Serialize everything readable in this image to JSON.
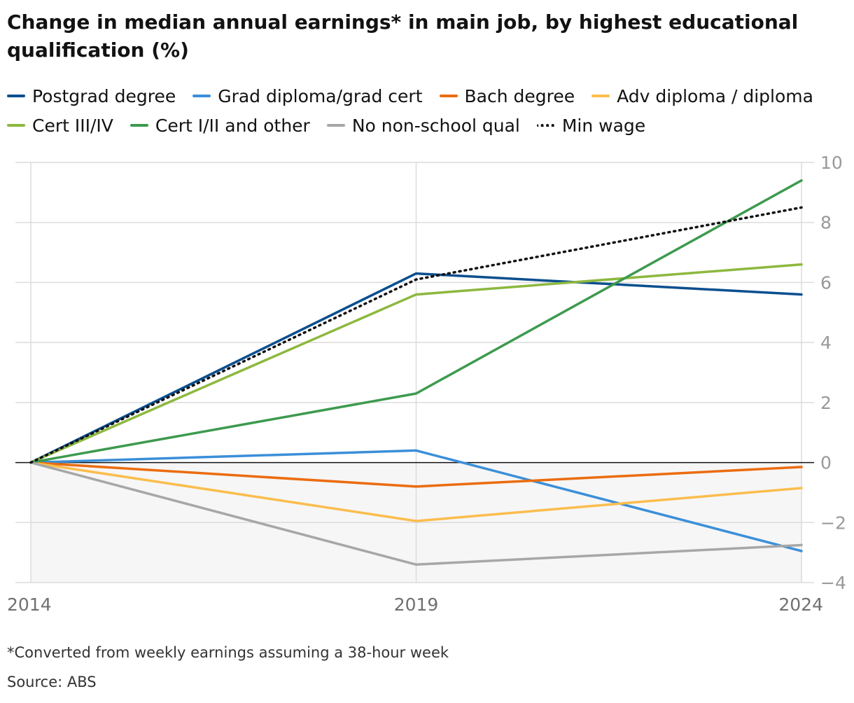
{
  "title": "Change in median annual earnings* in main job, by highest educational qualification (%)",
  "footnote": "*Converted from weekly earnings assuming a 38-hour week",
  "source": "Source: ABS",
  "chart_data": {
    "type": "line",
    "title": "Change in median annual earnings* in main job, by highest educational qualification (%)",
    "xlabel": "",
    "ylabel": "",
    "x": [
      2014,
      2019,
      2024
    ],
    "x_tick_labels": [
      "2014",
      "2019",
      "2024"
    ],
    "ylim": [
      -4,
      10
    ],
    "y_ticks": [
      10,
      8,
      6,
      4,
      2,
      0,
      -2,
      -4
    ],
    "y_tick_labels": [
      "10",
      "8",
      "6",
      "4",
      "2",
      "0",
      "−2",
      "−4"
    ],
    "grid": true,
    "series": [
      {
        "name": "Postgrad degree",
        "color": "#0a4f8f",
        "style": "solid",
        "values": [
          0,
          6.3,
          5.6
        ]
      },
      {
        "name": "Grad diploma/grad cert",
        "color": "#3b8fd9",
        "style": "solid",
        "values": [
          0,
          0.4,
          -2.95
        ]
      },
      {
        "name": "Bach degree",
        "color": "#eb6c0f",
        "style": "solid",
        "values": [
          0,
          -0.8,
          -0.15
        ]
      },
      {
        "name": "Adv diploma / diploma",
        "color": "#fbbd4d",
        "style": "solid",
        "values": [
          0,
          -1.95,
          -0.85
        ]
      },
      {
        "name": "Cert III/IV",
        "color": "#8db83f",
        "style": "solid",
        "values": [
          0,
          5.6,
          6.6
        ]
      },
      {
        "name": "Cert I/II and other",
        "color": "#3d9a4e",
        "style": "solid",
        "values": [
          0,
          2.3,
          9.4
        ]
      },
      {
        "name": "No non-school qual",
        "color": "#a7a7a7",
        "style": "solid",
        "values": [
          0,
          -3.4,
          -2.75
        ]
      },
      {
        "name": "Min wage",
        "color": "#121212",
        "style": "dotted",
        "values": [
          0,
          6.1,
          8.5
        ]
      }
    ]
  }
}
